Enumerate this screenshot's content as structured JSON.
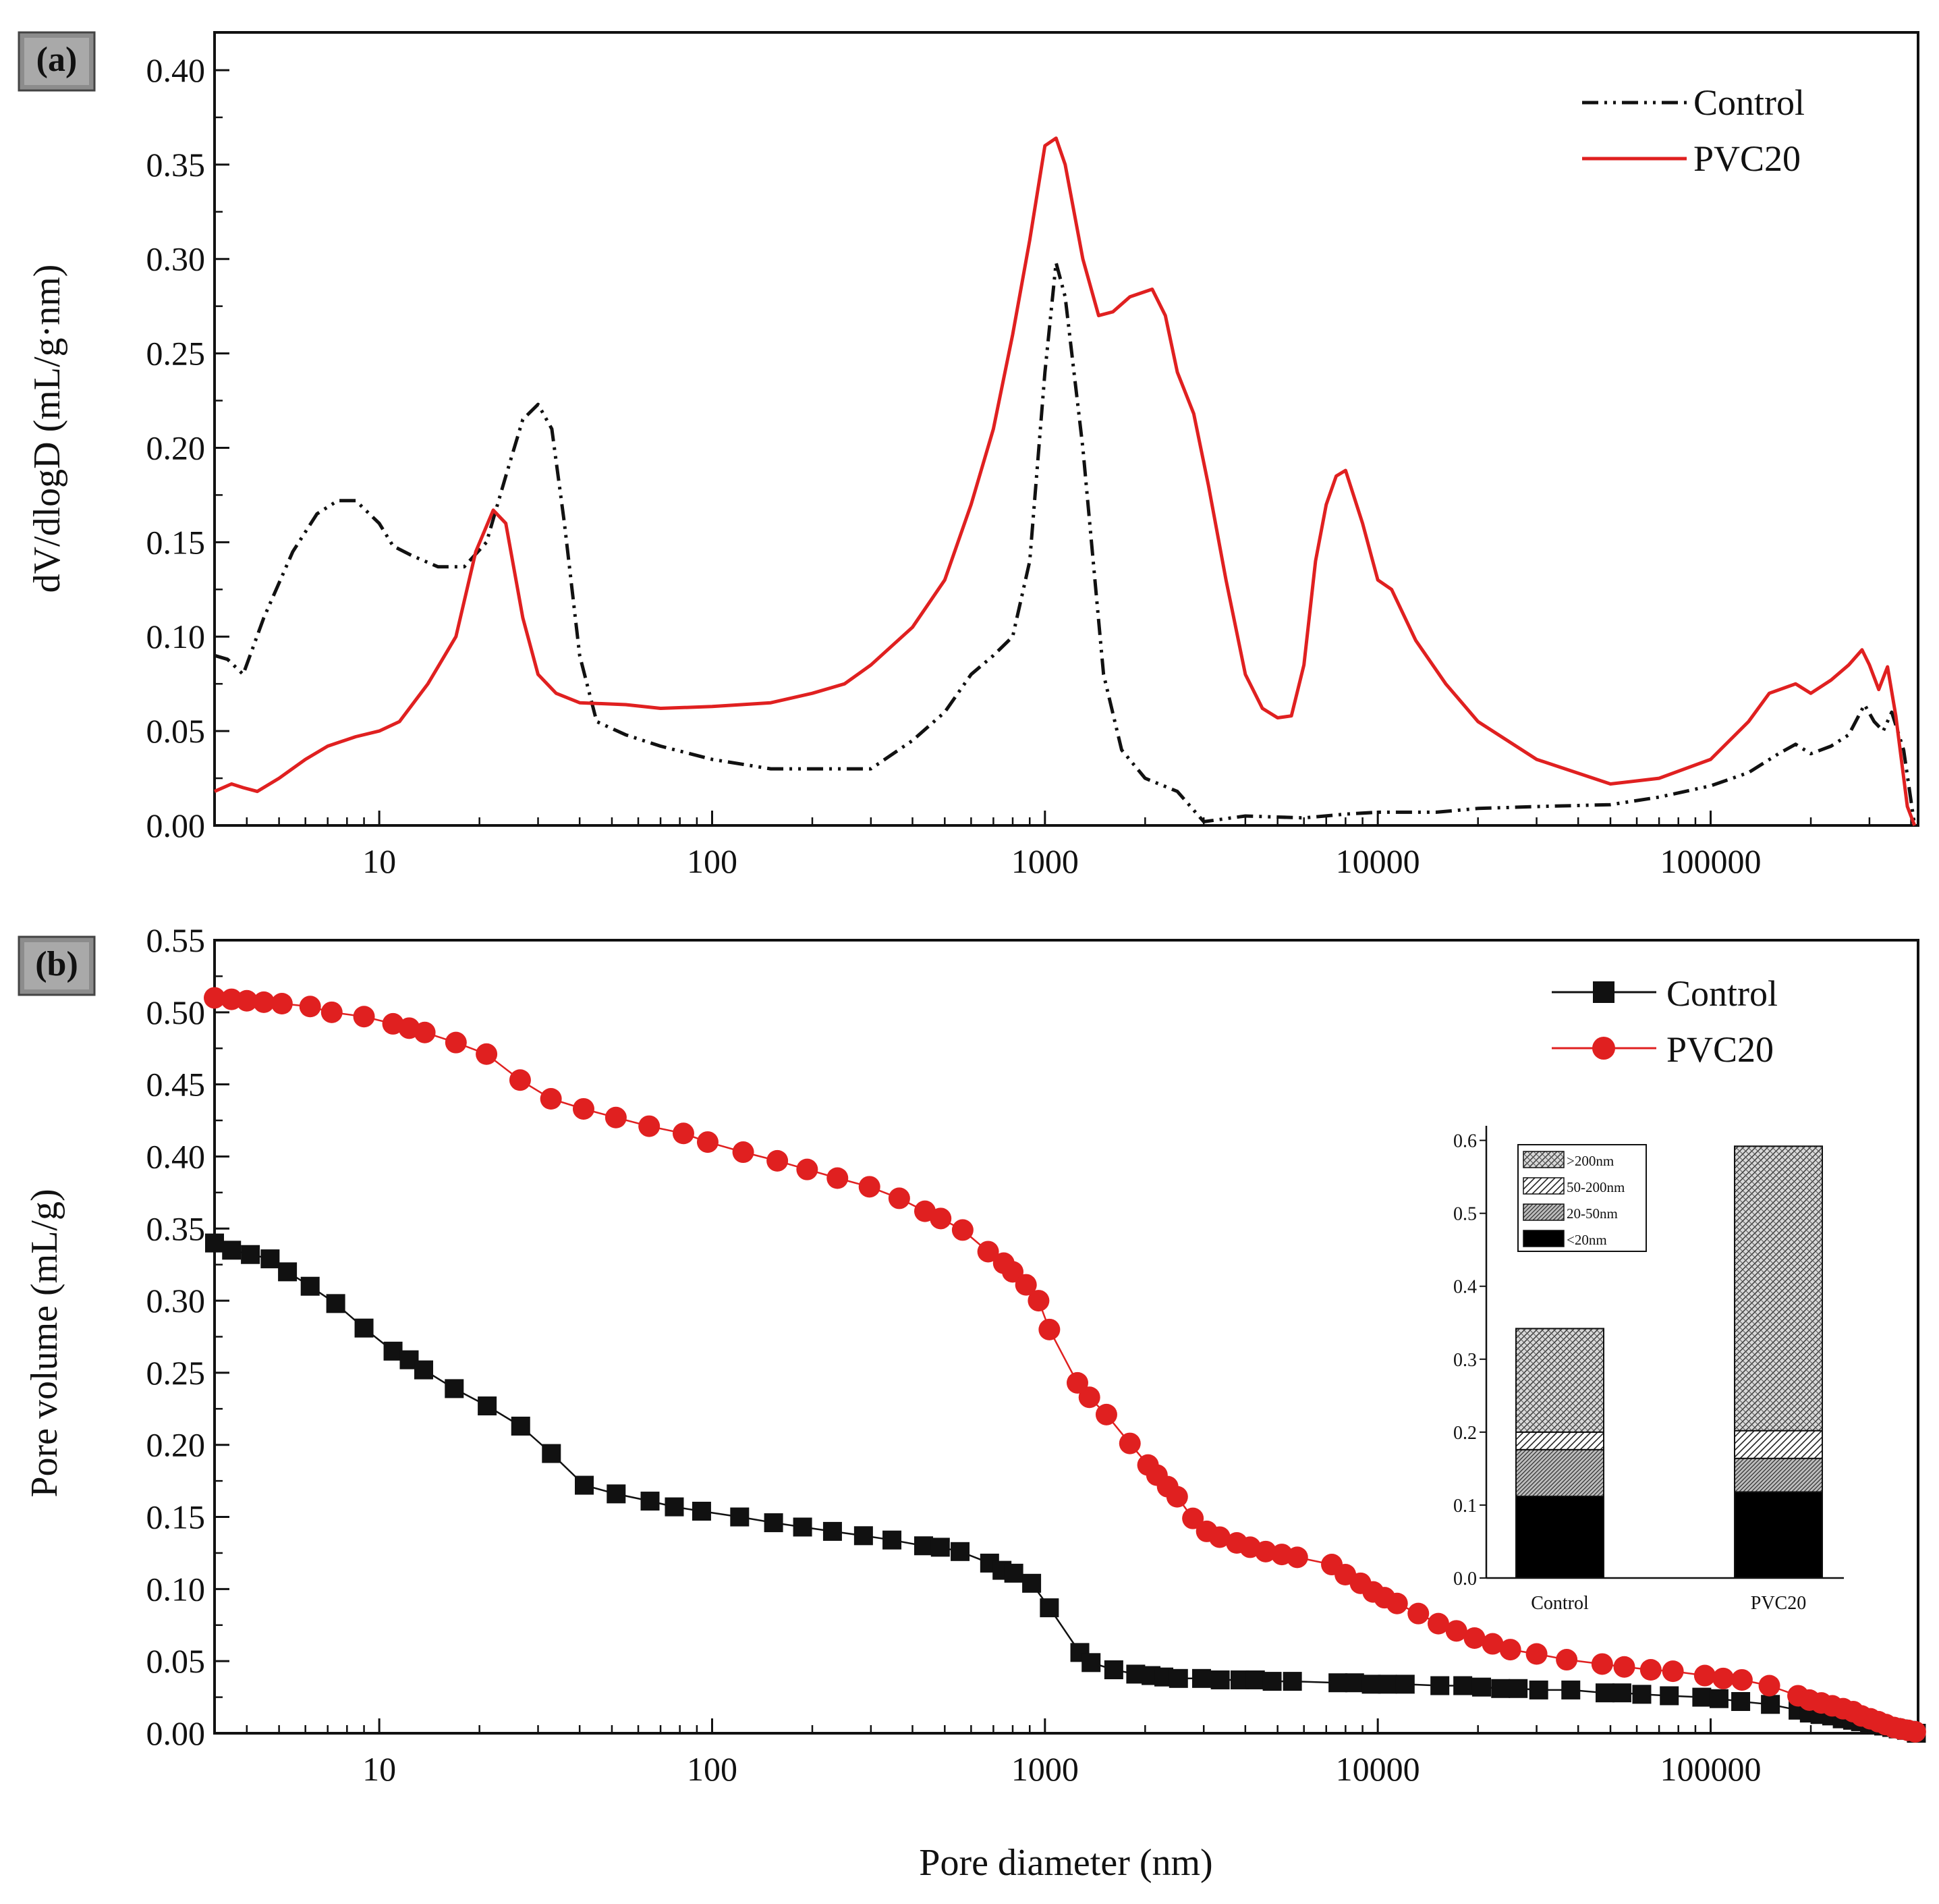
{
  "colors": {
    "control": "#111111",
    "pvc20": "#e02020",
    "panel_bg": "#8c8c8c"
  },
  "chart_data": [
    {
      "panel": "(a)",
      "type": "line",
      "x_scale": "log",
      "xlim": [
        3.2,
        420000
      ],
      "ylim": [
        0,
        0.42
      ],
      "x_ticks": [
        10,
        100,
        1000,
        10000,
        100000
      ],
      "x_tick_labels": [
        "10",
        "100",
        "1000",
        "10000",
        "100000"
      ],
      "y_ticks": [
        0,
        0.05,
        0.1,
        0.15,
        0.2,
        0.25,
        0.3,
        0.35,
        0.4
      ],
      "y_tick_labels": [
        "0.00",
        "0.05",
        "0.10",
        "0.15",
        "0.20",
        "0.25",
        "0.30",
        "0.35",
        "0.40"
      ],
      "ylabel": "dV/dlogD (mL/g·nm)",
      "xlabel": "",
      "legend_position": "top-right",
      "series": [
        {
          "name": "Control",
          "style": "dash-dot-dot",
          "x": [
            3.2,
            3.5,
            3.9,
            4.5,
            5.5,
            6.5,
            7.5,
            8.5,
            10,
            11,
            12.5,
            15,
            18,
            21,
            24,
            27,
            30,
            33,
            36,
            40,
            45,
            55,
            70,
            100,
            150,
            200,
            300,
            400,
            500,
            600,
            700,
            800,
            900,
            1000,
            1080,
            1150,
            1300,
            1500,
            1700,
            2000,
            2500,
            3000,
            4000,
            6000,
            8000,
            10000,
            15000,
            20000,
            30000,
            50000,
            70000,
            100000,
            130000,
            160000,
            180000,
            200000,
            230000,
            260000,
            290000,
            310000,
            330000,
            350000,
            380000,
            410000
          ],
          "y": [
            0.09,
            0.088,
            0.08,
            0.11,
            0.145,
            0.165,
            0.172,
            0.172,
            0.16,
            0.148,
            0.143,
            0.137,
            0.137,
            0.15,
            0.185,
            0.215,
            0.223,
            0.21,
            0.16,
            0.09,
            0.055,
            0.048,
            0.042,
            0.035,
            0.03,
            0.03,
            0.03,
            0.045,
            0.06,
            0.08,
            0.09,
            0.1,
            0.14,
            0.24,
            0.298,
            0.28,
            0.2,
            0.08,
            0.04,
            0.025,
            0.018,
            0.002,
            0.005,
            0.004,
            0.006,
            0.007,
            0.007,
            0.009,
            0.01,
            0.011,
            0.015,
            0.021,
            0.028,
            0.038,
            0.043,
            0.038,
            0.042,
            0.048,
            0.064,
            0.055,
            0.05,
            0.06,
            0.04,
            0.0
          ]
        },
        {
          "name": "PVC20",
          "style": "solid",
          "x": [
            3.2,
            3.6,
            3.9,
            4.3,
            5,
            6,
            7,
            8.5,
            10,
            11.5,
            14,
            17,
            19.5,
            22,
            24,
            27,
            30,
            34,
            40,
            55,
            70,
            100,
            150,
            200,
            250,
            300,
            400,
            500,
            600,
            700,
            800,
            900,
            1000,
            1080,
            1150,
            1300,
            1450,
            1600,
            1800,
            2100,
            2300,
            2500,
            2800,
            3100,
            3500,
            4000,
            4500,
            5000,
            5500,
            6000,
            6500,
            7000,
            7500,
            8000,
            9000,
            10000,
            11000,
            13000,
            16000,
            20000,
            30000,
            50000,
            70000,
            100000,
            130000,
            150000,
            180000,
            200000,
            230000,
            260000,
            285000,
            300000,
            320000,
            340000,
            360000,
            390000,
            410000
          ],
          "y": [
            0.018,
            0.022,
            0.02,
            0.018,
            0.025,
            0.035,
            0.042,
            0.047,
            0.05,
            0.055,
            0.075,
            0.1,
            0.145,
            0.167,
            0.16,
            0.11,
            0.08,
            0.07,
            0.065,
            0.064,
            0.062,
            0.063,
            0.065,
            0.07,
            0.075,
            0.085,
            0.105,
            0.13,
            0.17,
            0.21,
            0.26,
            0.31,
            0.36,
            0.364,
            0.35,
            0.3,
            0.27,
            0.272,
            0.28,
            0.284,
            0.27,
            0.24,
            0.218,
            0.18,
            0.13,
            0.08,
            0.062,
            0.057,
            0.058,
            0.085,
            0.14,
            0.17,
            0.185,
            0.188,
            0.16,
            0.13,
            0.125,
            0.098,
            0.075,
            0.055,
            0.035,
            0.022,
            0.025,
            0.035,
            0.055,
            0.07,
            0.075,
            0.07,
            0.077,
            0.085,
            0.093,
            0.085,
            0.072,
            0.084,
            0.058,
            0.01,
            0.0
          ]
        }
      ]
    },
    {
      "panel": "(b)",
      "type": "line",
      "x_scale": "log",
      "xlim": [
        3.2,
        420000
      ],
      "ylim": [
        0,
        0.55
      ],
      "x_ticks": [
        10,
        100,
        1000,
        10000,
        100000
      ],
      "x_tick_labels": [
        "10",
        "100",
        "1000",
        "10000",
        "100000"
      ],
      "y_ticks": [
        0,
        0.05,
        0.1,
        0.15,
        0.2,
        0.25,
        0.3,
        0.35,
        0.4,
        0.45,
        0.5,
        0.55
      ],
      "y_tick_labels": [
        "0.00",
        "0.05",
        "0.10",
        "0.15",
        "0.20",
        "0.25",
        "0.30",
        "0.35",
        "0.40",
        "0.45",
        "0.50",
        "0.55"
      ],
      "ylabel": "Pore volume (mL/g)",
      "xlabel": "Pore diameter (nm)",
      "legend_position": "top-right",
      "series": [
        {
          "name": "Control",
          "marker": "square",
          "x": [
            3.2,
            3.6,
            4.1,
            4.7,
            5.3,
            6.2,
            7.4,
            9,
            11,
            12.3,
            13.6,
            16.8,
            21.1,
            26.6,
            32.9,
            41.3,
            51.5,
            65.1,
            77,
            93,
            121,
            153,
            187,
            230,
            285,
            347,
            432,
            485,
            556,
            682,
            743,
            806,
            912,
            1031,
            1273,
            1376,
            1610,
            1874,
            2083,
            2276,
            2519,
            2955,
            3362,
            3855,
            4288,
            4815,
            5540,
            7592,
            8517,
            9560,
            10694,
            12088,
            15365,
            18003,
            20502,
            23389,
            26402,
            30440,
            38009,
            48162,
            54107,
            62110,
            75118,
            94052,
            105963,
            123116,
            151218,
            183064,
            197946,
            213117,
            231008,
            248549,
            267043,
            281950,
            300219,
            315980,
            331036,
            350108,
            366034,
            388053,
            415000
          ],
          "y": [
            0.34,
            0.335,
            0.332,
            0.329,
            0.32,
            0.31,
            0.298,
            0.281,
            0.265,
            0.259,
            0.252,
            0.239,
            0.227,
            0.213,
            0.194,
            0.172,
            0.166,
            0.161,
            0.157,
            0.154,
            0.15,
            0.146,
            0.143,
            0.14,
            0.137,
            0.134,
            0.13,
            0.129,
            0.126,
            0.118,
            0.113,
            0.111,
            0.104,
            0.087,
            0.056,
            0.049,
            0.044,
            0.041,
            0.04,
            0.039,
            0.038,
            0.038,
            0.037,
            0.037,
            0.037,
            0.036,
            0.036,
            0.035,
            0.035,
            0.034,
            0.034,
            0.034,
            0.033,
            0.033,
            0.032,
            0.031,
            0.031,
            0.03,
            0.03,
            0.028,
            0.028,
            0.027,
            0.026,
            0.025,
            0.024,
            0.022,
            0.02,
            0.016,
            0.014,
            0.013,
            0.012,
            0.01,
            0.009,
            0.008,
            0.007,
            0.006,
            0.005,
            0.004,
            0.003,
            0.002,
            0.0
          ]
        },
        {
          "name": "PVC20",
          "marker": "circle",
          "x": [
            3.2,
            3.6,
            4,
            4.5,
            5.1,
            6.2,
            7.2,
            9,
            11,
            12.3,
            13.7,
            17,
            21,
            26.5,
            32.8,
            41.1,
            51.4,
            64.7,
            82,
            97,
            124,
            157,
            193,
            238,
            297,
            365,
            436,
            486,
            566,
            675,
            752,
            800,
            877,
            957,
            1031,
            1252,
            1360,
            1530,
            1800,
            2040,
            2170,
            2337,
            2496,
            2783,
            3063,
            3350,
            3770,
            4136,
            4605,
            5150,
            5728,
            7276,
            7990,
            8877,
            9686,
            10477,
            11426,
            13237,
            15206,
            17227,
            19524,
            22135,
            25016,
            30004,
            36938,
            47236,
            55017,
            66099,
            77038,
            96043,
            109091,
            124157,
            150108,
            183063,
            198052,
            215119,
            232044,
            250112,
            268011,
            284002,
            302016,
            319114,
            336065,
            355122,
            372041,
            392017,
            412000
          ],
          "y": [
            0.51,
            0.509,
            0.508,
            0.507,
            0.506,
            0.504,
            0.5,
            0.497,
            0.492,
            0.489,
            0.486,
            0.479,
            0.471,
            0.453,
            0.44,
            0.433,
            0.427,
            0.421,
            0.416,
            0.41,
            0.403,
            0.397,
            0.391,
            0.385,
            0.379,
            0.371,
            0.362,
            0.357,
            0.349,
            0.334,
            0.326,
            0.32,
            0.311,
            0.3,
            0.28,
            0.243,
            0.233,
            0.221,
            0.201,
            0.186,
            0.179,
            0.171,
            0.164,
            0.149,
            0.14,
            0.136,
            0.132,
            0.129,
            0.126,
            0.124,
            0.122,
            0.117,
            0.11,
            0.104,
            0.098,
            0.094,
            0.09,
            0.083,
            0.076,
            0.071,
            0.066,
            0.062,
            0.058,
            0.055,
            0.051,
            0.048,
            0.046,
            0.044,
            0.043,
            0.04,
            0.038,
            0.037,
            0.033,
            0.026,
            0.023,
            0.021,
            0.019,
            0.017,
            0.015,
            0.012,
            0.01,
            0.008,
            0.006,
            0.004,
            0.003,
            0.002,
            0.001
          ]
        }
      ]
    },
    {
      "panel": "inset",
      "type": "bar",
      "stacked": true,
      "categories": [
        "Control",
        "PVC20"
      ],
      "ylim": [
        0,
        0.62
      ],
      "y_ticks": [
        0,
        0.1,
        0.2,
        0.3,
        0.4,
        0.5,
        0.6
      ],
      "y_tick_labels": [
        "0.0",
        "0.1",
        "0.2",
        "0.3",
        "0.4",
        "0.5",
        "0.6"
      ],
      "legend_position": "top-left",
      "series": [
        {
          "name": "<20nm",
          "pattern": "solid-black",
          "values": [
            0.112,
            0.118
          ]
        },
        {
          "name": "20-50nm",
          "pattern": "dense-hatch",
          "values": [
            0.064,
            0.046
          ]
        },
        {
          "name": "50-200nm",
          "pattern": "diagonal-hatch",
          "values": [
            0.024,
            0.038
          ]
        },
        {
          "name": ">200nm",
          "pattern": "cross-hatch",
          "values": [
            0.142,
            0.39
          ]
        }
      ]
    }
  ]
}
